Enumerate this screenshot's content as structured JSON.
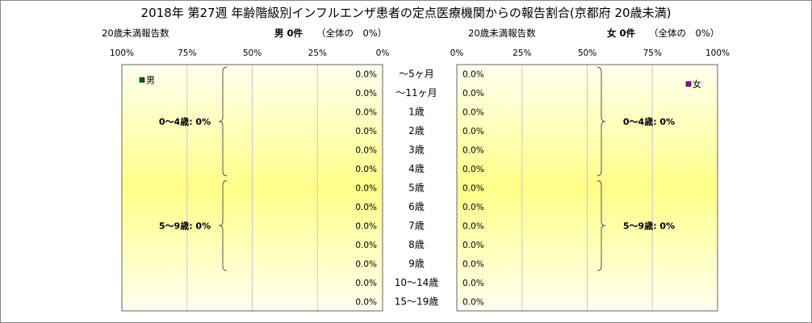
{
  "title": "2018年 第27週 年齢階級別インフルエンザ患者の定点医療機関からの報告割合(京都府 20歳未満)",
  "left_header": {
    "caption": "20歳未満報告数",
    "sex_count": "男 0件",
    "share": "（全体の　0%）"
  },
  "right_header": {
    "caption": "20歳未満報告数",
    "sex_count": "女 0件",
    "share": "（全体の　0%）"
  },
  "chart_data": {
    "type": "bar",
    "orientation": "horizontal-pyramid",
    "categories": [
      "～5ヶ月",
      "～11ヶ月",
      "1歳",
      "2歳",
      "3歳",
      "4歳",
      "5歳",
      "6歳",
      "7歳",
      "8歳",
      "9歳",
      "10～14歳",
      "15～19歳"
    ],
    "left_ticks": [
      "100%",
      "75%",
      "50%",
      "25%",
      "0%"
    ],
    "right_ticks": [
      "0%",
      "25%",
      "50%",
      "75%",
      "100%"
    ],
    "xlim": [
      0,
      100
    ],
    "series": [
      {
        "name": "男",
        "color": "#006400",
        "values": [
          0,
          0,
          0,
          0,
          0,
          0,
          0,
          0,
          0,
          0,
          0,
          0,
          0
        ],
        "labels": [
          "0.0%",
          "0.0%",
          "0.0%",
          "0.0%",
          "0.0%",
          "0.0%",
          "0.0%",
          "0.0%",
          "0.0%",
          "0.0%",
          "0.0%",
          "0.0%",
          "0.0%"
        ]
      },
      {
        "name": "女",
        "color": "#a000a0",
        "values": [
          0,
          0,
          0,
          0,
          0,
          0,
          0,
          0,
          0,
          0,
          0,
          0,
          0
        ],
        "labels": [
          "0.0%",
          "0.0%",
          "0.0%",
          "0.0%",
          "0.0%",
          "0.0%",
          "0.0%",
          "0.0%",
          "0.0%",
          "0.0%",
          "0.0%",
          "0.0%",
          "0.0%"
        ]
      }
    ],
    "groups": [
      {
        "label": "0～4歳: 0%",
        "from": 0,
        "to": 5
      },
      {
        "label": "5～9歳: 0%",
        "from": 6,
        "to": 10
      }
    ],
    "grid": true,
    "legend": "top-inside"
  },
  "colors": {
    "fill_edge": "#fffff0",
    "fill_center": "#ffff88",
    "grid": "#c8c8c8",
    "border": "#666666"
  }
}
